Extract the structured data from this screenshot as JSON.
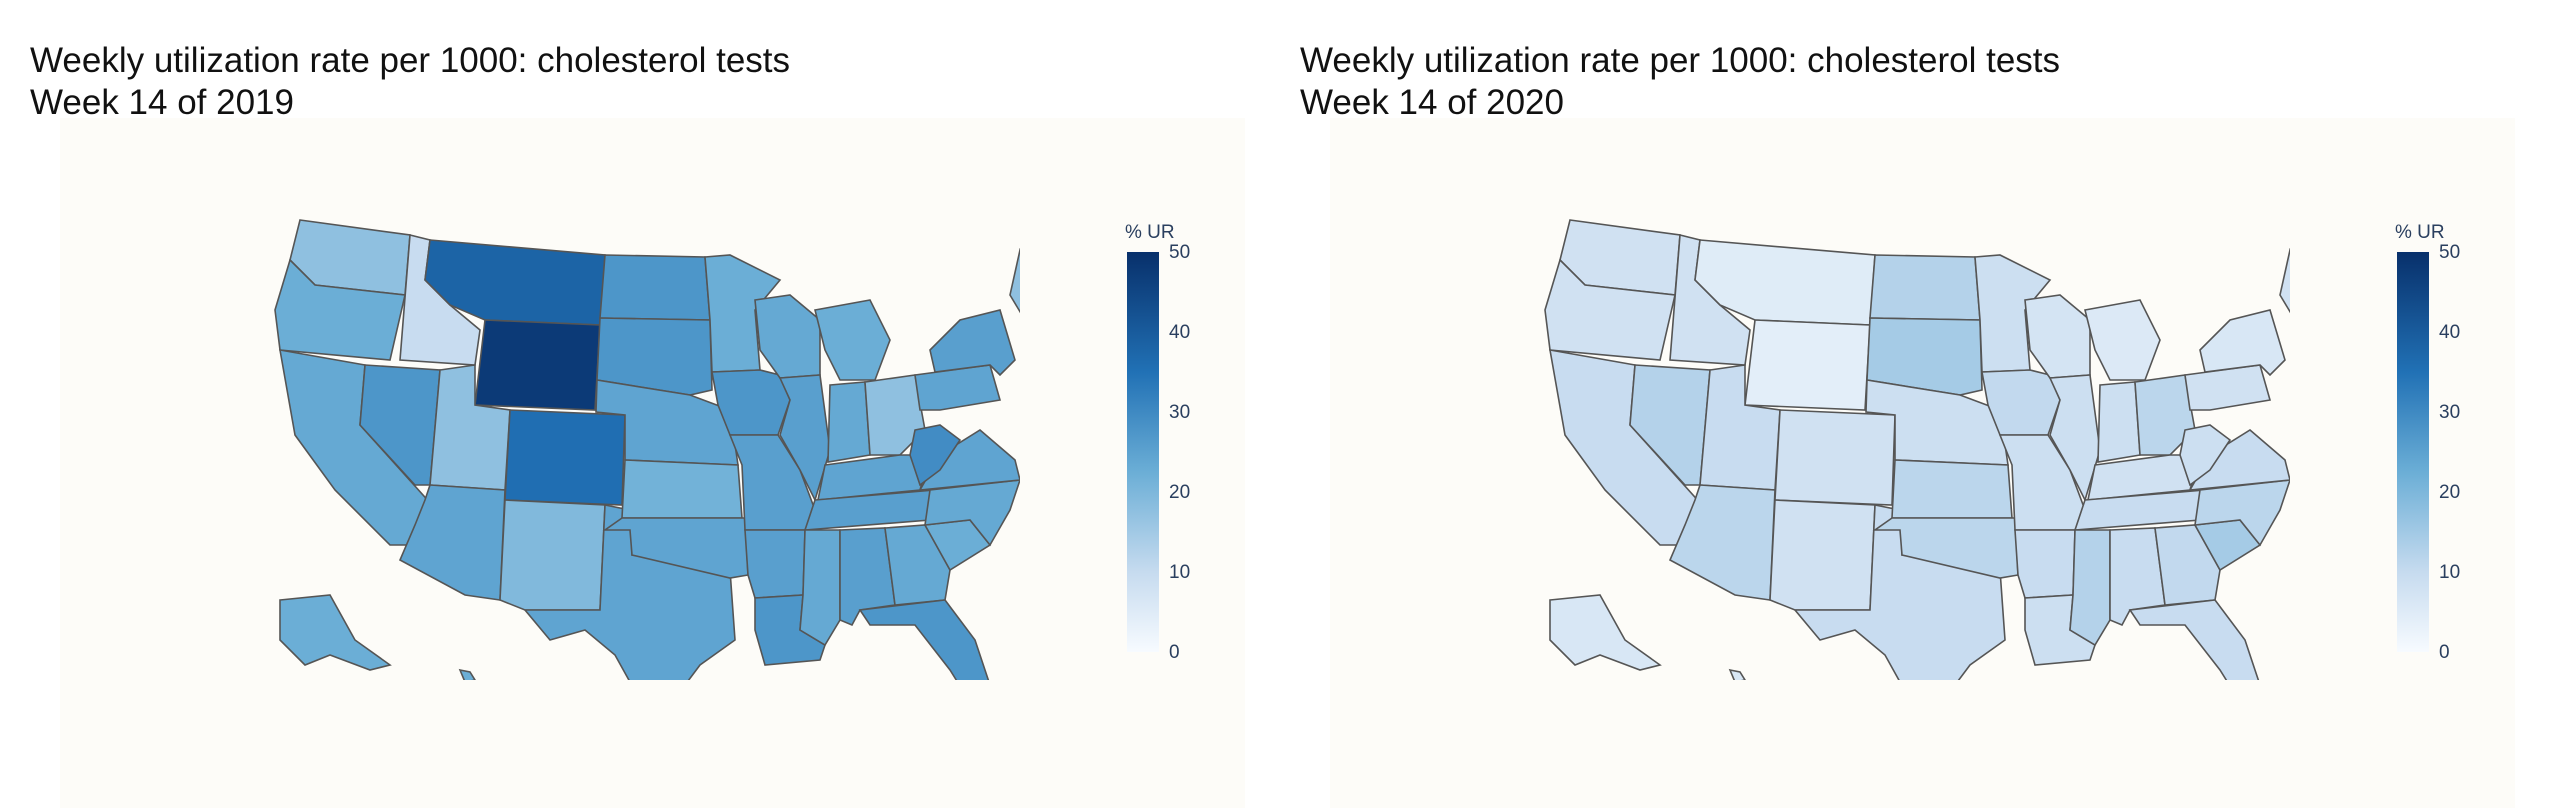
{
  "panels": [
    {
      "title": "Weekly utilization rate per 1000: cholesterol tests",
      "subtitle": "Week 14 of 2019",
      "colorbar": {
        "title": "% UR",
        "ticks": [
          "50",
          "40",
          "30",
          "20",
          "10",
          "0"
        ],
        "range": [
          0,
          50
        ]
      }
    },
    {
      "title": "Weekly utilization rate per 1000: cholesterol tests",
      "subtitle": "Week 14 of 2020",
      "colorbar": {
        "title": "% UR",
        "ticks": [
          "50",
          "40",
          "30",
          "20",
          "10",
          "0"
        ],
        "range": [
          0,
          50
        ]
      }
    }
  ],
  "colorscale": [
    "#f7fbff",
    "#c6dbef",
    "#6baed6",
    "#2171b5",
    "#08306b"
  ],
  "chart_data": [
    {
      "type": "heatmap",
      "map": "US states choropleth",
      "title": "Weekly utilization rate per 1000: cholesterol tests",
      "subtitle": "Week 14 of 2019",
      "colorbar_title": "% UR",
      "range": [
        0,
        50
      ],
      "states": {
        "WA": 20,
        "OR": 25,
        "CA": 26,
        "NV": 30,
        "ID": 12,
        "MT": 40,
        "WY": 48,
        "UT": 20,
        "AZ": 27,
        "CO": 38,
        "NM": 22,
        "TX": 27,
        "ND": 30,
        "SD": 30,
        "NE": 27,
        "KS": 24,
        "OK": 27,
        "MN": 25,
        "IA": 30,
        "MO": 28,
        "AR": 28,
        "LA": 30,
        "WI": 26,
        "IL": 28,
        "MI": 25,
        "IN": 26,
        "OH": 20,
        "KY": 27,
        "TN": 28,
        "MS": 26,
        "AL": 28,
        "GA": 26,
        "FL": 30,
        "SC": 25,
        "NC": 26,
        "VA": 27,
        "WV": 32,
        "PA": 27,
        "NY": 28,
        "ME": 20,
        "AK": 25,
        "HI": 25
      }
    },
    {
      "type": "heatmap",
      "map": "US states choropleth",
      "title": "Weekly utilization rate per 1000: cholesterol tests",
      "subtitle": "Week 14 of 2020",
      "colorbar_title": "% UR",
      "range": [
        0,
        50
      ],
      "states": {
        "WA": 10,
        "OR": 10,
        "CA": 12,
        "NV": 15,
        "ID": 10,
        "MT": 6,
        "WY": 5,
        "UT": 12,
        "AZ": 14,
        "CO": 10,
        "NM": 10,
        "TX": 12,
        "ND": 15,
        "SD": 17,
        "NE": 11,
        "KS": 14,
        "OK": 14,
        "MN": 11,
        "IA": 13,
        "MO": 11,
        "AR": 12,
        "LA": 11,
        "WI": 9,
        "IL": 11,
        "MI": 7,
        "IN": 11,
        "OH": 14,
        "KY": 10,
        "TN": 12,
        "MS": 15,
        "AL": 12,
        "GA": 13,
        "FL": 12,
        "SC": 17,
        "NC": 14,
        "VA": 12,
        "WV": 11,
        "PA": 10,
        "NY": 8,
        "ME": 10,
        "AK": 8,
        "HI": 8
      }
    }
  ]
}
